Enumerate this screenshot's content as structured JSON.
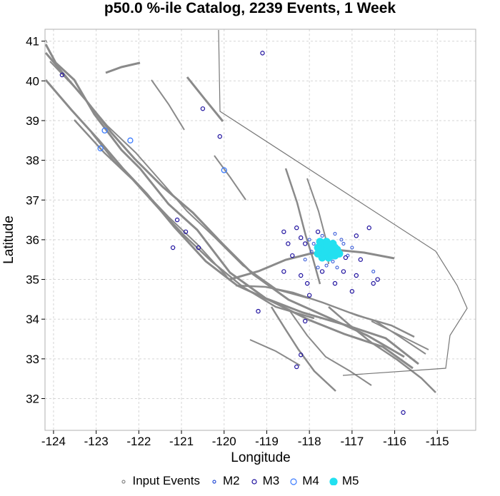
{
  "chart_data": {
    "type": "scatter",
    "title": "p50.0 %-ile Catalog, 2239 Events, 1 Week",
    "xlabel": "Longitude",
    "ylabel": "Latitude",
    "xlim": [
      -124.2,
      -114.1
    ],
    "ylim": [
      31.2,
      41.3
    ],
    "xticks": [
      -124,
      -123,
      -122,
      -121,
      -120,
      -119,
      -118,
      -117,
      -116,
      -115
    ],
    "yticks": [
      32,
      33,
      34,
      35,
      36,
      37,
      38,
      39,
      40,
      41
    ],
    "grid": true,
    "legend_position": "bottom",
    "legend": [
      {
        "name": "Input Events",
        "symbol": "small-gray-circle"
      },
      {
        "name": "M2",
        "symbol": "small-blue-circle"
      },
      {
        "name": "M3",
        "symbol": "navy-circle"
      },
      {
        "name": "M4",
        "symbol": "blue-circle"
      },
      {
        "name": "M5",
        "symbol": "filled-cyan-circle"
      }
    ],
    "colors": {
      "faults": "#8a8a8a",
      "boundary": "#777777",
      "grid": "#d6d6d6",
      "M2": "#2a4fd6",
      "M3": "#1d0f9e",
      "M4": "#3a7bff",
      "M5": "#22e0f0"
    },
    "series": [
      {
        "name": "M2",
        "points": [
          [
            -117.6,
            35.8
          ],
          [
            -117.5,
            35.6
          ],
          [
            -117.9,
            35.9
          ],
          [
            -117.3,
            35.7
          ],
          [
            -117.7,
            36.1
          ],
          [
            -118.1,
            35.5
          ],
          [
            -117.2,
            35.9
          ],
          [
            -117.45,
            35.45
          ],
          [
            -117.0,
            35.8
          ],
          [
            -117.8,
            35.3
          ],
          [
            -117.4,
            36.15
          ],
          [
            -118.0,
            36.0
          ],
          [
            -117.1,
            35.6
          ],
          [
            -117.6,
            35.35
          ],
          [
            -116.5,
            35.2
          ],
          [
            -117.25,
            36.0
          ],
          [
            -117.95,
            35.7
          ],
          [
            -117.35,
            35.3
          ]
        ]
      },
      {
        "name": "M3",
        "points": [
          [
            -119.1,
            40.7
          ],
          [
            -123.8,
            40.15
          ],
          [
            -120.5,
            39.3
          ],
          [
            -120.1,
            38.6
          ],
          [
            -121.1,
            36.5
          ],
          [
            -120.9,
            36.2
          ],
          [
            -121.2,
            35.8
          ],
          [
            -120.6,
            35.8
          ],
          [
            -118.6,
            36.2
          ],
          [
            -118.3,
            36.3
          ],
          [
            -118.1,
            35.9
          ],
          [
            -118.4,
            35.6
          ],
          [
            -118.5,
            35.9
          ],
          [
            -116.9,
            36.1
          ],
          [
            -116.6,
            36.3
          ],
          [
            -117.2,
            35.2
          ],
          [
            -116.9,
            35.1
          ],
          [
            -117.0,
            34.7
          ],
          [
            -118.2,
            35.1
          ],
          [
            -118.05,
            34.9
          ],
          [
            -116.5,
            34.9
          ],
          [
            -116.4,
            35.0
          ],
          [
            -118.1,
            33.95
          ],
          [
            -118.2,
            33.1
          ],
          [
            -118.3,
            32.8
          ],
          [
            -115.8,
            31.65
          ],
          [
            -118.2,
            36.05
          ],
          [
            -117.8,
            36.2
          ],
          [
            -117.15,
            35.55
          ],
          [
            -117.7,
            35.2
          ],
          [
            -116.8,
            35.5
          ],
          [
            -117.4,
            34.9
          ],
          [
            -118.6,
            35.2
          ],
          [
            -118.0,
            34.6
          ],
          [
            -119.2,
            34.2
          ]
        ]
      },
      {
        "name": "M4",
        "points": [
          [
            -122.9,
            38.3
          ],
          [
            -120.0,
            37.75
          ],
          [
            -122.8,
            38.75
          ],
          [
            -122.2,
            38.5
          ]
        ]
      },
      {
        "name": "M5",
        "points": [
          [
            -117.7,
            35.85
          ],
          [
            -117.6,
            35.75
          ],
          [
            -117.5,
            35.65
          ],
          [
            -117.55,
            35.8
          ],
          [
            -117.45,
            35.7
          ],
          [
            -117.65,
            35.9
          ],
          [
            -117.4,
            35.6
          ],
          [
            -117.8,
            35.8
          ],
          [
            -117.6,
            35.6
          ],
          [
            -117.7,
            35.7
          ],
          [
            -117.5,
            35.85
          ],
          [
            -117.35,
            35.75
          ],
          [
            -117.75,
            35.95
          ],
          [
            -117.55,
            35.55
          ],
          [
            -117.65,
            35.65
          ],
          [
            -117.45,
            35.9
          ],
          [
            -117.6,
            35.95
          ],
          [
            -117.8,
            35.65
          ],
          [
            -117.4,
            35.8
          ],
          [
            -117.7,
            35.55
          ],
          [
            -117.5,
            35.75
          ],
          [
            -117.3,
            35.65
          ],
          [
            -117.62,
            35.7
          ],
          [
            -117.48,
            35.6
          ],
          [
            -117.58,
            35.88
          ]
        ]
      }
    ]
  }
}
